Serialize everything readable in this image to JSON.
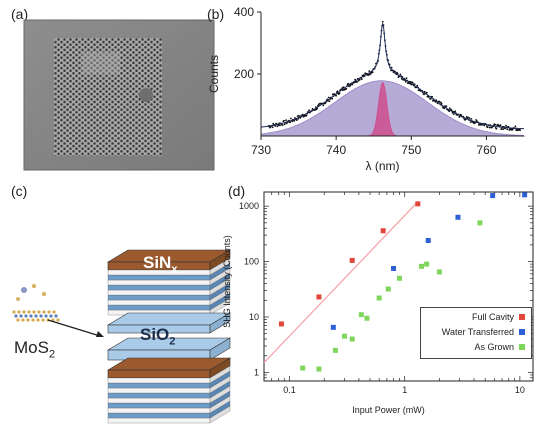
{
  "panels": {
    "a": "(a)",
    "b": "(b)",
    "c": "(c)",
    "d": "(d)"
  },
  "panel_c": {
    "mos2_base": "MoS",
    "mos2_sub": "2",
    "sinx_base": "SiN",
    "sinx_sub": "x",
    "sio2_base": "SiO",
    "sio2_sub": "2",
    "colors": {
      "sinx_top": "#9a5a2e",
      "sio2": "#a9cbe8",
      "stripe_blue": "#6e9cc9"
    }
  },
  "chart_data": [
    {
      "panel": "b",
      "type": "line",
      "xlabel": "λ (nm)",
      "ylabel": "Counts",
      "xlim": [
        730,
        765
      ],
      "ylim": [
        0,
        400
      ],
      "xticks": [
        730,
        740,
        750,
        760
      ],
      "yticks": [
        200,
        400
      ],
      "series": [
        {
          "style": "points-with-fit",
          "color": "#111111",
          "baseline": 22,
          "broad": {
            "amp": 180,
            "center": 746,
            "sigma": 6.2
          },
          "narrow": {
            "amp": 160,
            "center": 746.2,
            "gamma": 0.4
          }
        },
        {
          "style": "filled-gaussian",
          "color": "#9d8ec9",
          "amp": 178,
          "center": 746,
          "sigma": 6.2
        },
        {
          "style": "filled-gaussian",
          "color": "#cf4f8f",
          "amp": 172,
          "center": 746.2,
          "sigma": 0.55
        }
      ]
    },
    {
      "panel": "d",
      "type": "scatter",
      "xlabel": "Input Power (mW)",
      "ylabel": "SHG Intensity (Counts)",
      "xscale": "log",
      "yscale": "log",
      "xlim": [
        0.06,
        13
      ],
      "ylim": [
        0.7,
        1800
      ],
      "xticks": [
        0.1,
        1,
        10
      ],
      "yticks": [
        1,
        10,
        100,
        1000
      ],
      "legend_position": "bottom-right",
      "series": [
        {
          "name": "Full Cavity",
          "color": "#e0463a",
          "x": [
            0.085,
            0.18,
            0.35,
            0.65,
            1.3
          ],
          "y": [
            7.5,
            23,
            105,
            360,
            1100
          ]
        },
        {
          "name": "Water Transferred",
          "color": "#2f5fd6",
          "x": [
            0.24,
            0.8,
            1.6,
            2.9,
            5.8,
            11
          ],
          "y": [
            6.5,
            75,
            240,
            630,
            1550,
            1600
          ]
        },
        {
          "name": "As Grown",
          "color": "#7fd65a",
          "x": [
            0.13,
            0.18,
            0.25,
            0.3,
            0.35,
            0.42,
            0.47,
            0.6,
            0.72,
            0.9,
            1.4,
            1.55,
            2.0,
            4.5
          ],
          "y": [
            1.2,
            1.15,
            2.5,
            4.5,
            4.0,
            11,
            9.5,
            22,
            32,
            50,
            82,
            90,
            65,
            500
          ]
        }
      ],
      "fit_line": {
        "color": "#f4a6ab",
        "x": [
          0.06,
          1.3
        ],
        "y": [
          1.5,
          1200
        ]
      }
    }
  ]
}
